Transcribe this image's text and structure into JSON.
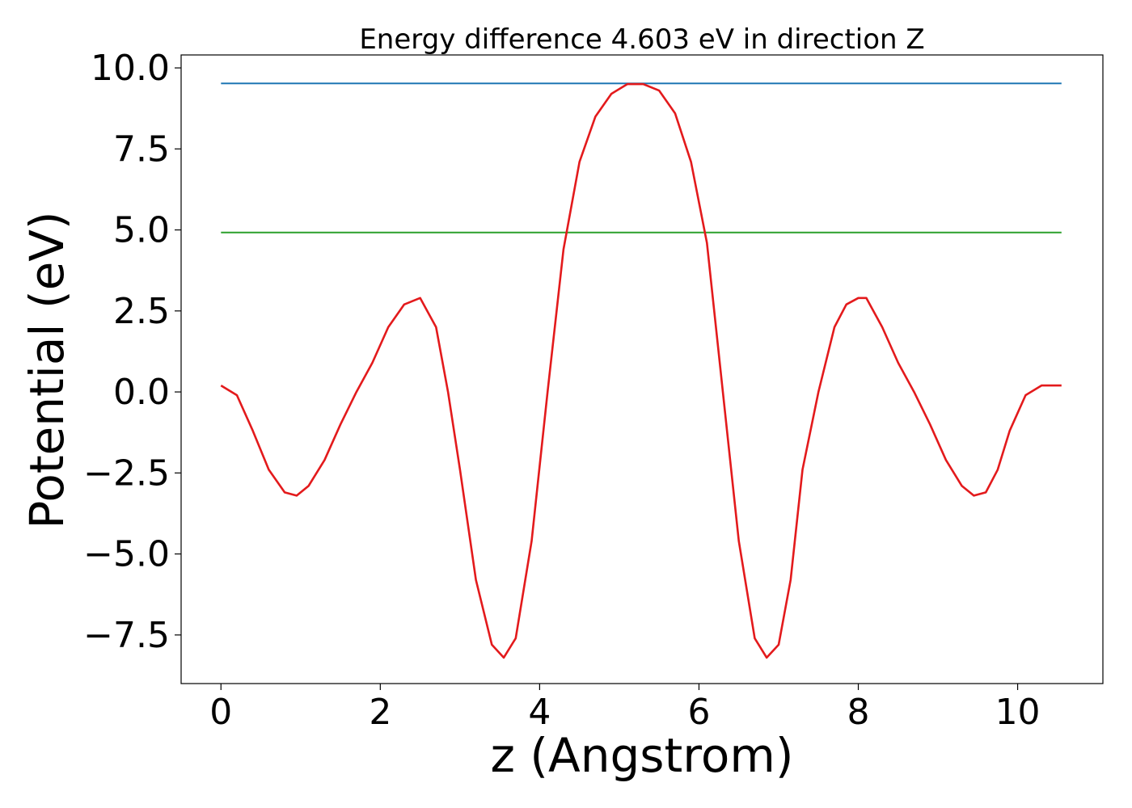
{
  "chart_data": {
    "type": "line",
    "title": "Energy difference 4.603 eV in direction Z",
    "xlabel": "z (Angstrom)",
    "ylabel": "Potential (eV)",
    "xlim": [
      -0.5,
      11.07
    ],
    "ylim": [
      -9.0,
      10.4
    ],
    "xticks": [
      0,
      2,
      4,
      6,
      8,
      10
    ],
    "xtick_labels": [
      "0",
      "2",
      "4",
      "6",
      "8",
      "10"
    ],
    "yticks": [
      -7.5,
      -5.0,
      -2.5,
      0.0,
      2.5,
      5.0,
      7.5,
      10.0
    ],
    "ytick_labels": [
      "−7.5",
      "−5.0",
      "−2.5",
      "0.0",
      "2.5",
      "5.0",
      "7.5",
      "10.0"
    ],
    "grid": false,
    "series": [
      {
        "color": "#1f77b4",
        "x": [
          0,
          10.55
        ],
        "y": [
          9.52,
          9.52
        ]
      },
      {
        "color": "#2ca02c",
        "x": [
          0,
          10.55
        ],
        "y": [
          4.92,
          4.92
        ]
      },
      {
        "color": "#e31a1c",
        "x": [
          0.0,
          0.2,
          0.4,
          0.6,
          0.8,
          0.95,
          1.1,
          1.3,
          1.5,
          1.7,
          1.9,
          2.1,
          2.3,
          2.5,
          2.7,
          2.85,
          3.0,
          3.2,
          3.4,
          3.55,
          3.7,
          3.9,
          4.1,
          4.3,
          4.5,
          4.7,
          4.9,
          5.1,
          5.3,
          5.5,
          5.7,
          5.9,
          6.1,
          6.3,
          6.5,
          6.7,
          6.85,
          7.0,
          7.15,
          7.3,
          7.5,
          7.7,
          7.85,
          8.0,
          8.1,
          8.3,
          8.5,
          8.7,
          8.9,
          9.1,
          9.3,
          9.45,
          9.6,
          9.75,
          9.9,
          10.1,
          10.3,
          10.55
        ],
        "y": [
          0.2,
          -0.1,
          -1.2,
          -2.4,
          -3.1,
          -3.2,
          -2.9,
          -2.1,
          -1.0,
          0.0,
          0.9,
          2.0,
          2.7,
          2.9,
          2.0,
          0.0,
          -2.4,
          -5.8,
          -7.8,
          -8.2,
          -7.6,
          -4.6,
          0.0,
          4.4,
          7.1,
          8.5,
          9.2,
          9.5,
          9.5,
          9.3,
          8.6,
          7.1,
          4.6,
          0.0,
          -4.6,
          -7.6,
          -8.2,
          -7.8,
          -5.8,
          -2.4,
          0.0,
          2.0,
          2.7,
          2.9,
          2.9,
          2.0,
          0.9,
          0.0,
          -1.0,
          -2.1,
          -2.9,
          -3.2,
          -3.1,
          -2.4,
          -1.2,
          -0.1,
          0.2,
          0.2
        ]
      }
    ]
  }
}
